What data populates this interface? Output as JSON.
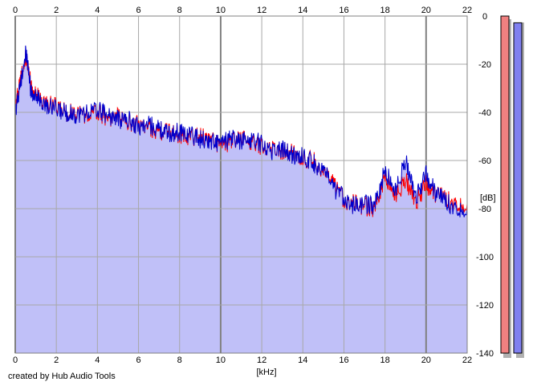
{
  "credit": "created by Hub Audio Tools",
  "colors": {
    "background": "#ffffff",
    "plot_background": "#ffffff",
    "fill": "#c0c0f8",
    "grid": "#a8a8a8",
    "grid_major": "#808080",
    "left_channel": "#ff0000",
    "right_channel": "#0000cc",
    "meter_left": "#f08080",
    "meter_right": "#8080f0"
  },
  "chart_data": {
    "type": "line",
    "title": "",
    "xlabel": "[kHz]",
    "ylabel": "[dB]",
    "xlim": [
      0,
      22
    ],
    "ylim": [
      -140,
      0
    ],
    "x_ticks": [
      "0",
      "2",
      "4",
      "6",
      "8",
      "10",
      "12",
      "14",
      "16",
      "18",
      "20",
      "22"
    ],
    "y_ticks": [
      "0",
      "-20",
      "-40",
      "-60",
      "-80",
      "-100",
      "-120",
      "-140"
    ],
    "grid": true,
    "x_ticks_top": true,
    "fill_under": true,
    "series": [
      {
        "color": "#ff0000",
        "x": [
          0,
          0.25,
          0.5,
          0.75,
          1,
          1.5,
          2,
          2.5,
          3,
          3.5,
          4,
          4.5,
          5,
          5.5,
          6,
          6.5,
          7,
          7.5,
          8,
          8.5,
          9,
          9.5,
          10,
          10.5,
          11,
          11.5,
          12,
          12.5,
          13,
          13.5,
          14,
          14.5,
          15,
          15.5,
          16,
          16.5,
          17,
          17.5,
          18,
          18.5,
          19,
          19.5,
          20,
          20.5,
          21,
          21.5,
          22
        ],
        "values": [
          -38,
          -26,
          -16,
          -28,
          -32,
          -36,
          -38,
          -40,
          -40,
          -41,
          -40,
          -42,
          -42,
          -44,
          -45,
          -46,
          -48,
          -48,
          -49,
          -50,
          -50,
          -51,
          -54,
          -52,
          -51,
          -52,
          -54,
          -55,
          -56,
          -57,
          -59,
          -60,
          -65,
          -70,
          -76,
          -78,
          -79,
          -80,
          -66,
          -75,
          -68,
          -77,
          -70,
          -74,
          -76,
          -78,
          -78
        ]
      },
      {
        "color": "#0000cc",
        "x": [
          0,
          0.25,
          0.5,
          0.75,
          1,
          1.5,
          2,
          2.5,
          3,
          3.5,
          4,
          4.5,
          5,
          5.5,
          6,
          6.5,
          7,
          7.5,
          8,
          8.5,
          9,
          9.5,
          10,
          10.5,
          11,
          11.5,
          12,
          12.5,
          13,
          13.5,
          14,
          14.5,
          15,
          15.5,
          16,
          16.5,
          17,
          17.5,
          18,
          18.5,
          19,
          19.5,
          20,
          20.5,
          21,
          21.5,
          22
        ],
        "values": [
          -40,
          -28,
          -14,
          -30,
          -33,
          -37,
          -39,
          -40,
          -41,
          -40,
          -39,
          -41,
          -43,
          -43,
          -46,
          -45,
          -47,
          -49,
          -48,
          -49,
          -51,
          -52,
          -53,
          -51,
          -52,
          -51,
          -53,
          -56,
          -55,
          -58,
          -58,
          -61,
          -64,
          -72,
          -75,
          -79,
          -78,
          -79,
          -64,
          -73,
          -60,
          -75,
          -66,
          -74,
          -77,
          -80,
          -80
        ]
      }
    ],
    "meters": {
      "labels": [],
      "left": 1.0,
      "right": 0.98
    }
  }
}
